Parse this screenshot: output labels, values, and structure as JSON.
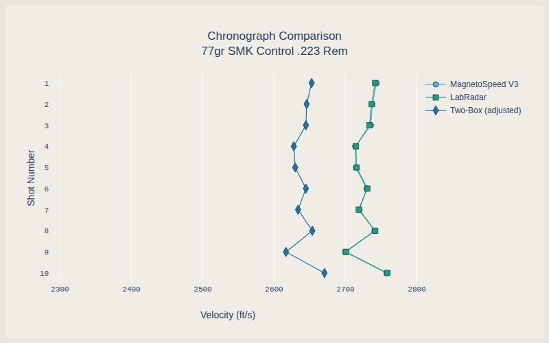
{
  "chart_data": {
    "type": "line",
    "orientation": "horizontal",
    "title": "Chronograph Comparison",
    "subtitle": "77gr SMK Control .223 Rem",
    "x_label": "Velocity (ft/s)",
    "y_label": "Shot Number",
    "categories": [
      "1",
      "2",
      "3",
      "4",
      "5",
      "6",
      "7",
      "8",
      "9",
      "10"
    ],
    "series": [
      {
        "name": "MagnetoSpeed V3",
        "color": "#5aa9d6",
        "marker": "circle",
        "line_style": "solid",
        "values": [
          2744,
          2738,
          2736,
          2714,
          2715,
          2730,
          2720,
          2741,
          2700,
          2758
        ]
      },
      {
        "name": "LabRadar",
        "color": "#1f9e78",
        "marker": "square",
        "line_style": "solid",
        "values": [
          2742,
          2737,
          2734,
          2715,
          2716,
          2731,
          2719,
          2742,
          2701,
          2759
        ]
      },
      {
        "name": "Two-Box (adjusted)",
        "color": "#1f6fa8",
        "marker": "diamond",
        "line_style": "solid",
        "values": [
          2653,
          2646,
          2645,
          2628,
          2630,
          2645,
          2634,
          2654,
          2617,
          2671
        ]
      }
    ],
    "xlim": [
      2300,
      2800
    ],
    "xticks": [
      2300,
      2400,
      2500,
      2600,
      2700,
      2800
    ],
    "grid": true,
    "legend": "top-right"
  }
}
